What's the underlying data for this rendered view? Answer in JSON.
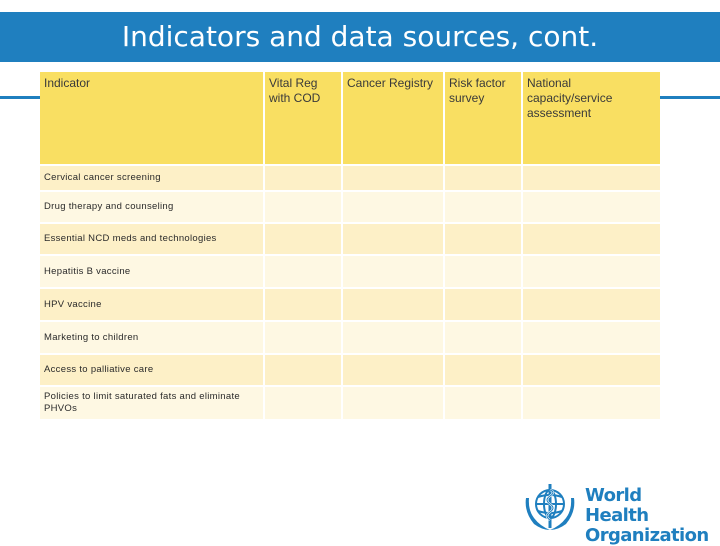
{
  "slide": {
    "title": "Indicators and data sources, cont."
  },
  "table": {
    "headers": [
      "Indicator",
      "Vital Reg with COD",
      "Cancer Registry",
      "Risk factor survey",
      "National capacity/service assessment"
    ],
    "rows": [
      "Cervical cancer screening",
      "Drug therapy and counseling",
      "Essential NCD meds and technologies",
      "Hepatitis B vaccine",
      "HPV vaccine",
      "Marketing to children",
      "Access to palliative care",
      "Policies to limit saturated fats and eliminate PHVOs"
    ]
  },
  "logo": {
    "line1": "World Health",
    "line2": "Organization"
  },
  "colors": {
    "title_bar": "#1f7fbf",
    "header_cells": "#f9df62",
    "row_odd": "#fdf0c7",
    "row_even": "#fef8e3"
  }
}
